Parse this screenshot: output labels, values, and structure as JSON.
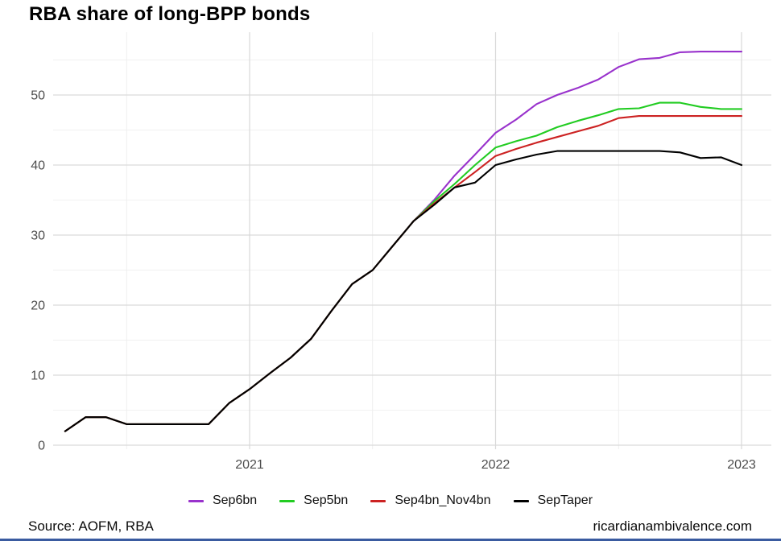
{
  "title": "RBA share of long-BPP bonds",
  "footer": {
    "source": "Source: AOFM, RBA",
    "site": "ricardianambivalence.com",
    "bar_color": "#3a5ba0"
  },
  "chart_data": {
    "type": "line",
    "title": "RBA share of long-BPP bonds",
    "xlabel": "",
    "ylabel": "",
    "x_unit": "month",
    "x_start": "2020-04",
    "x_end": "2023-01",
    "x_tick_labels": [
      "2021",
      "2022",
      "2023"
    ],
    "y_tick_labels": [
      "0",
      "10",
      "20",
      "30",
      "40",
      "50"
    ],
    "y_major_ticks": [
      0,
      10,
      20,
      30,
      40,
      50
    ],
    "y_minor_ticks": [
      5,
      15,
      25,
      35,
      45,
      55
    ],
    "ylim": [
      0,
      58
    ],
    "grid": "on",
    "legend_position": "bottom",
    "axis_text_color": "#4d4d4d",
    "grid_major_color": "#d9d9d9",
    "grid_minor_color": "#ececec",
    "series": [
      {
        "name": "Sep6bn",
        "color": "#9932cc",
        "values": [
          2,
          4,
          4,
          3,
          3,
          3,
          3,
          3,
          6,
          8,
          10.3,
          12.5,
          15.2,
          19.2,
          23,
          25,
          28.5,
          32,
          35,
          38.5,
          41.5,
          44.6,
          46.5,
          48.7,
          50,
          51,
          52.2,
          54,
          55.1,
          55.3,
          56.1,
          56.2,
          56.2,
          56.2
        ]
      },
      {
        "name": "Sep5bn",
        "color": "#22cc22",
        "values": [
          2,
          4,
          4,
          3,
          3,
          3,
          3,
          3,
          6,
          8,
          10.3,
          12.5,
          15.2,
          19.2,
          23,
          25,
          28.5,
          32,
          34.8,
          37.3,
          40,
          42.5,
          43.4,
          44.2,
          45.4,
          46.3,
          47.1,
          48,
          48.1,
          48.9,
          48.9,
          48.3,
          48,
          48
        ]
      },
      {
        "name": "Sep4bn_Nov4bn",
        "color": "#cc2222",
        "values": [
          2,
          4,
          4,
          3,
          3,
          3,
          3,
          3,
          6,
          8,
          10.3,
          12.5,
          15.2,
          19.2,
          23,
          25,
          28.5,
          32,
          34.5,
          36.8,
          39,
          41.3,
          42.3,
          43.2,
          44,
          44.8,
          45.6,
          46.7,
          47,
          47,
          47,
          47,
          47,
          47
        ]
      },
      {
        "name": "SepTaper",
        "color": "#000000",
        "values": [
          2,
          4,
          4,
          3,
          3,
          3,
          3,
          3,
          6,
          8,
          10.3,
          12.5,
          15.2,
          19.2,
          23,
          25,
          28.5,
          32,
          34.3,
          36.8,
          37.5,
          40,
          40.8,
          41.5,
          42,
          42,
          42,
          42,
          42,
          42,
          41.8,
          41,
          41.1,
          40
        ]
      }
    ]
  }
}
